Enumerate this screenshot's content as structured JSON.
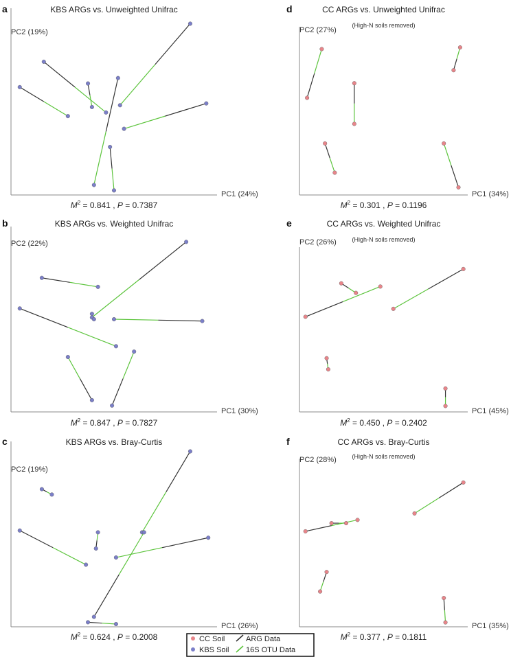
{
  "colors": {
    "cc_point": "#e8858a",
    "kbs_point": "#7b7fc9",
    "arg_line": "#333333",
    "otu_line": "#5cc43c",
    "axis": "#888888"
  },
  "legend": {
    "items": [
      {
        "label": "CC Soil",
        "kind": "point",
        "color_key": "cc_point"
      },
      {
        "label": "ARG Data",
        "kind": "line",
        "color_key": "arg_line"
      },
      {
        "label": "KBS Soil",
        "kind": "point",
        "color_key": "kbs_point"
      },
      {
        "label": "16S OTU Data",
        "kind": "line",
        "color_key": "otu_line"
      }
    ]
  },
  "chart_data": [
    {
      "type": "scatter",
      "panel": "a",
      "title": "KBS ARGs vs. Unweighted Unifrac",
      "subtitle": "",
      "xlabel": "PC1 (24%)",
      "ylabel": "PC2 (19%)",
      "stat": {
        "m2": "0.841",
        "p": "0.7387"
      },
      "point_color": "kbs_point",
      "grid": false,
      "pairs": [
        {
          "arg": [
            0.03,
            0.58
          ],
          "otu": [
            0.27,
            0.42
          ]
        },
        {
          "arg": [
            0.15,
            0.72
          ],
          "otu": [
            0.46,
            0.44
          ]
        },
        {
          "arg": [
            0.37,
            0.6
          ],
          "otu": [
            0.39,
            0.47
          ]
        },
        {
          "arg": [
            0.52,
            0.63
          ],
          "otu": [
            0.4,
            0.04
          ]
        },
        {
          "arg": [
            0.88,
            0.93
          ],
          "otu": [
            0.53,
            0.48
          ]
        },
        {
          "arg": [
            0.96,
            0.49
          ],
          "otu": [
            0.55,
            0.35
          ]
        },
        {
          "arg": [
            0.48,
            0.25
          ],
          "otu": [
            0.5,
            0.01
          ]
        }
      ]
    },
    {
      "type": "scatter",
      "panel": "b",
      "title": "KBS ARGs vs. Weighted Unifrac",
      "subtitle": "",
      "xlabel": "PC1 (30%)",
      "ylabel": "PC2 (22%)",
      "stat": {
        "m2": "0.847",
        "p": "0.7827"
      },
      "point_color": "kbs_point",
      "grid": false,
      "pairs": [
        {
          "arg": [
            0.14,
            0.73
          ],
          "otu": [
            0.42,
            0.68
          ]
        },
        {
          "arg": [
            0.03,
            0.56
          ],
          "otu": [
            0.51,
            0.35
          ]
        },
        {
          "arg": [
            0.86,
            0.93
          ],
          "otu": [
            0.39,
            0.51
          ]
        },
        {
          "arg": [
            0.94,
            0.49
          ],
          "otu": [
            0.5,
            0.5
          ]
        },
        {
          "arg": [
            0.39,
            0.05
          ],
          "otu": [
            0.27,
            0.29
          ]
        },
        {
          "arg": [
            0.49,
            0.02
          ],
          "otu": [
            0.6,
            0.32
          ]
        },
        {
          "arg": [
            0.39,
            0.53
          ],
          "otu": [
            0.4,
            0.5
          ]
        }
      ]
    },
    {
      "type": "scatter",
      "panel": "c",
      "title": "KBS ARGs vs. Bray-Curtis",
      "subtitle": "",
      "xlabel": "PC1 (26%)",
      "ylabel": "PC2 (19%)",
      "stat": {
        "m2": "0.624",
        "p": "0.2008"
      },
      "point_color": "kbs_point",
      "grid": false,
      "pairs": [
        {
          "arg": [
            0.14,
            0.75
          ],
          "otu": [
            0.19,
            0.72
          ]
        },
        {
          "arg": [
            0.03,
            0.52
          ],
          "otu": [
            0.36,
            0.33
          ]
        },
        {
          "arg": [
            0.41,
            0.42
          ],
          "otu": [
            0.42,
            0.51
          ]
        },
        {
          "arg": [
            0.88,
            0.96
          ],
          "otu": [
            0.64,
            0.51
          ]
        },
        {
          "arg": [
            0.97,
            0.48
          ],
          "otu": [
            0.51,
            0.37
          ]
        },
        {
          "arg": [
            0.4,
            0.04
          ],
          "otu": [
            0.65,
            0.51
          ]
        },
        {
          "arg": [
            0.37,
            0.01
          ],
          "otu": [
            0.51,
            0.0
          ]
        }
      ]
    },
    {
      "type": "scatter",
      "panel": "d",
      "title": "CC ARGs vs. Unweighted Unifrac",
      "subtitle": "(High-N soils removed)",
      "xlabel": "PC1 (34%)",
      "ylabel": "PC2 (27%)",
      "stat": {
        "m2": "0.301",
        "p": "0.1196"
      },
      "point_color": "cc_point",
      "grid": false,
      "pairs": [
        {
          "arg": [
            0.03,
            0.58
          ],
          "otu": [
            0.12,
            0.88
          ]
        },
        {
          "arg": [
            0.93,
            0.75
          ],
          "otu": [
            0.97,
            0.89
          ]
        },
        {
          "arg": [
            0.32,
            0.67
          ],
          "otu": [
            0.32,
            0.42
          ]
        },
        {
          "arg": [
            0.14,
            0.3
          ],
          "otu": [
            0.2,
            0.12
          ]
        },
        {
          "arg": [
            0.96,
            0.03
          ],
          "otu": [
            0.87,
            0.3
          ]
        }
      ]
    },
    {
      "type": "scatter",
      "panel": "e",
      "title": "CC ARGs vs. Weighted Unifrac",
      "subtitle": "(High-N soils removed)",
      "xlabel": "PC1 (45%)",
      "ylabel": "PC2 (26%)",
      "stat": {
        "m2": "0.450",
        "p": "0.2402"
      },
      "point_color": "cc_point",
      "grid": false,
      "pairs": [
        {
          "arg": [
            0.24,
            0.79
          ],
          "otu": [
            0.33,
            0.73
          ]
        },
        {
          "arg": [
            0.02,
            0.58
          ],
          "otu": [
            0.48,
            0.77
          ]
        },
        {
          "arg": [
            0.99,
            0.88
          ],
          "otu": [
            0.56,
            0.63
          ]
        },
        {
          "arg": [
            0.15,
            0.32
          ],
          "otu": [
            0.16,
            0.25
          ]
        },
        {
          "arg": [
            0.88,
            0.13
          ],
          "otu": [
            0.88,
            0.02
          ]
        }
      ]
    },
    {
      "type": "scatter",
      "panel": "f",
      "title": "CC ARGs vs. Bray-Curtis",
      "subtitle": "(High-N soils removed)",
      "xlabel": "PC1 (35%)",
      "ylabel": "PC2 (28%)",
      "stat": {
        "m2": "0.377",
        "p": "0.1811"
      },
      "point_color": "cc_point",
      "grid": false,
      "pairs": [
        {
          "arg": [
            0.02,
            0.57
          ],
          "otu": [
            0.34,
            0.64
          ]
        },
        {
          "arg": [
            0.18,
            0.62
          ],
          "otu": [
            0.27,
            0.62
          ]
        },
        {
          "arg": [
            0.99,
            0.87
          ],
          "otu": [
            0.69,
            0.68
          ]
        },
        {
          "arg": [
            0.15,
            0.32
          ],
          "otu": [
            0.11,
            0.2
          ]
        },
        {
          "arg": [
            0.87,
            0.16
          ],
          "otu": [
            0.88,
            0.01
          ]
        }
      ]
    }
  ]
}
